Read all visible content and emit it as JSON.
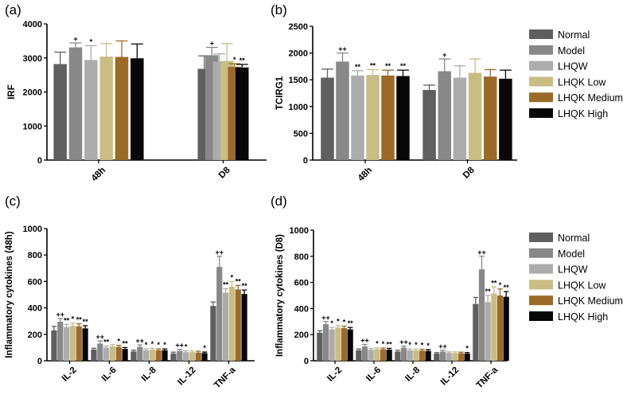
{
  "colors": {
    "Normal": "#5f5f5f",
    "Model": "#888888",
    "LHQW": "#acacac",
    "LHQK Low": "#c9bd84",
    "LHQK Medium": "#9c6a28",
    "LHQK High": "#070707"
  },
  "chart_data": [
    {
      "panel": "(a)",
      "type": "bar",
      "ylabel": "IRF",
      "ylim": [
        0,
        4000
      ],
      "yticks": [
        0,
        1000,
        2000,
        3000,
        4000
      ],
      "categories": [
        "48h",
        "D8"
      ],
      "rotated_categories": true,
      "series": [
        {
          "name": "Normal",
          "values": [
            2820,
            2680
          ],
          "errors": [
            350,
            380
          ],
          "sig": [
            "",
            ""
          ]
        },
        {
          "name": "Model",
          "values": [
            3310,
            3080
          ],
          "errors": [
            130,
            230
          ],
          "sig": [
            "+",
            "+"
          ]
        },
        {
          "name": "LHQW",
          "values": [
            2940,
            2890
          ],
          "errors": [
            420,
            230
          ],
          "sig": [
            "*",
            ""
          ]
        },
        {
          "name": "LHQK Low",
          "values": [
            3040,
            2910
          ],
          "errors": [
            380,
            510
          ],
          "sig": [
            "",
            ""
          ]
        },
        {
          "name": "LHQK Medium",
          "values": [
            3030,
            2740
          ],
          "errors": [
            470,
            90
          ],
          "sig": [
            "",
            "*"
          ]
        },
        {
          "name": "LHQK High",
          "values": [
            2990,
            2720
          ],
          "errors": [
            420,
            90
          ],
          "sig": [
            "",
            "**"
          ]
        }
      ]
    },
    {
      "panel": "(b)",
      "type": "bar",
      "ylabel": "TCIRG1",
      "ylim": [
        0,
        2500
      ],
      "yticks": [
        0,
        500,
        1000,
        1500,
        2000,
        2500
      ],
      "categories": [
        "48h",
        "D8"
      ],
      "rotated_categories": true,
      "series": [
        {
          "name": "Normal",
          "values": [
            1540,
            1310
          ],
          "errors": [
            160,
            90
          ],
          "sig": [
            "",
            ""
          ]
        },
        {
          "name": "Model",
          "values": [
            1840,
            1660
          ],
          "errors": [
            160,
            230
          ],
          "sig": [
            "++",
            "+"
          ]
        },
        {
          "name": "LHQW",
          "values": [
            1580,
            1540
          ],
          "errors": [
            90,
            220
          ],
          "sig": [
            "**",
            ""
          ]
        },
        {
          "name": "LHQK Low",
          "values": [
            1590,
            1630
          ],
          "errors": [
            100,
            260
          ],
          "sig": [
            "**",
            ""
          ]
        },
        {
          "name": "LHQK Medium",
          "values": [
            1580,
            1560
          ],
          "errors": [
            100,
            130
          ],
          "sig": [
            "**",
            ""
          ]
        },
        {
          "name": "LHQK High",
          "values": [
            1570,
            1520
          ],
          "errors": [
            110,
            160
          ],
          "sig": [
            "**",
            ""
          ]
        }
      ]
    },
    {
      "panel": "(c)",
      "type": "bar",
      "ylabel": "Inflammatory cytokines (48h)",
      "ylim": [
        0,
        1000
      ],
      "yticks": [
        0,
        200,
        400,
        600,
        800,
        1000
      ],
      "categories": [
        "IL-2",
        "IL-6",
        "IL-8",
        "IL-12",
        "TNF-a"
      ],
      "rotated_categories": true,
      "series": [
        {
          "name": "Normal",
          "values": [
            230,
            85,
            70,
            55,
            415
          ],
          "errors": [
            30,
            10,
            10,
            10,
            30
          ],
          "sig": [
            "",
            "",
            "",
            "",
            ""
          ]
        },
        {
          "name": "Model",
          "values": [
            295,
            130,
            105,
            75,
            710
          ],
          "errors": [
            25,
            20,
            15,
            12,
            80
          ],
          "sig": [
            "++",
            "++",
            "++",
            "++",
            "++"
          ]
        },
        {
          "name": "LHQW",
          "values": [
            255,
            100,
            80,
            65,
            515
          ],
          "errors": [
            20,
            12,
            10,
            10,
            30
          ],
          "sig": [
            "**",
            "**",
            "*",
            "*",
            "**"
          ]
        },
        {
          "name": "LHQK Low",
          "values": [
            265,
            110,
            85,
            65,
            560
          ],
          "errors": [
            20,
            12,
            10,
            10,
            40
          ],
          "sig": [
            "*",
            "",
            "*",
            "",
            "*"
          ]
        },
        {
          "name": "LHQK Medium",
          "values": [
            260,
            105,
            80,
            62,
            540
          ],
          "errors": [
            20,
            12,
            10,
            10,
            30
          ],
          "sig": [
            "**",
            "*",
            "*",
            "",
            "**"
          ]
        },
        {
          "name": "LHQK High",
          "values": [
            245,
            90,
            80,
            58,
            505
          ],
          "errors": [
            20,
            10,
            10,
            8,
            30
          ],
          "sig": [
            "**",
            "**",
            "*",
            "*",
            "**"
          ]
        }
      ]
    },
    {
      "panel": "(d)",
      "type": "bar",
      "ylabel": "Inflammatory cytokines (D8)",
      "ylim": [
        0,
        1000
      ],
      "yticks": [
        0,
        200,
        400,
        600,
        800,
        1000
      ],
      "categories": [
        "IL-2",
        "IL-6",
        "IL-8",
        "IL-12",
        "TNF-a"
      ],
      "rotated_categories": true,
      "series": [
        {
          "name": "Normal",
          "values": [
            215,
            80,
            70,
            55,
            435
          ],
          "errors": [
            15,
            10,
            10,
            8,
            50
          ],
          "sig": [
            "",
            "",
            "",
            "",
            ""
          ]
        },
        {
          "name": "Model",
          "values": [
            280,
            110,
            100,
            70,
            700
          ],
          "errors": [
            20,
            15,
            12,
            10,
            100
          ],
          "sig": [
            "++",
            "++",
            "++",
            "++",
            "++"
          ]
        },
        {
          "name": "LHQW",
          "values": [
            240,
            85,
            80,
            60,
            450
          ],
          "errors": [
            15,
            10,
            10,
            8,
            50
          ],
          "sig": [
            "*",
            "",
            "*",
            "",
            "**"
          ]
        },
        {
          "name": "LHQK Low",
          "values": [
            255,
            90,
            80,
            60,
            515
          ],
          "errors": [
            15,
            10,
            10,
            8,
            50
          ],
          "sig": [
            "*",
            "*",
            "*",
            "",
            "**"
          ]
        },
        {
          "name": "LHQK Medium",
          "values": [
            250,
            88,
            78,
            58,
            500
          ],
          "errors": [
            15,
            10,
            10,
            8,
            50
          ],
          "sig": [
            "*",
            "*",
            "*",
            "",
            "*"
          ]
        },
        {
          "name": "LHQK High",
          "values": [
            240,
            85,
            75,
            55,
            490
          ],
          "errors": [
            15,
            10,
            10,
            8,
            40
          ],
          "sig": [
            "**",
            "**",
            "*",
            "*",
            "**"
          ]
        }
      ]
    }
  ],
  "legends": [
    {
      "entries": [
        "Normal",
        "Model",
        "LHQW",
        "LHQK Low",
        "LHQK Medium",
        "LHQK High"
      ]
    },
    {
      "entries": [
        "Normal",
        "Model",
        "LHQW",
        "LHQK Low",
        "LHQK Medium",
        "LHQK High"
      ]
    }
  ]
}
